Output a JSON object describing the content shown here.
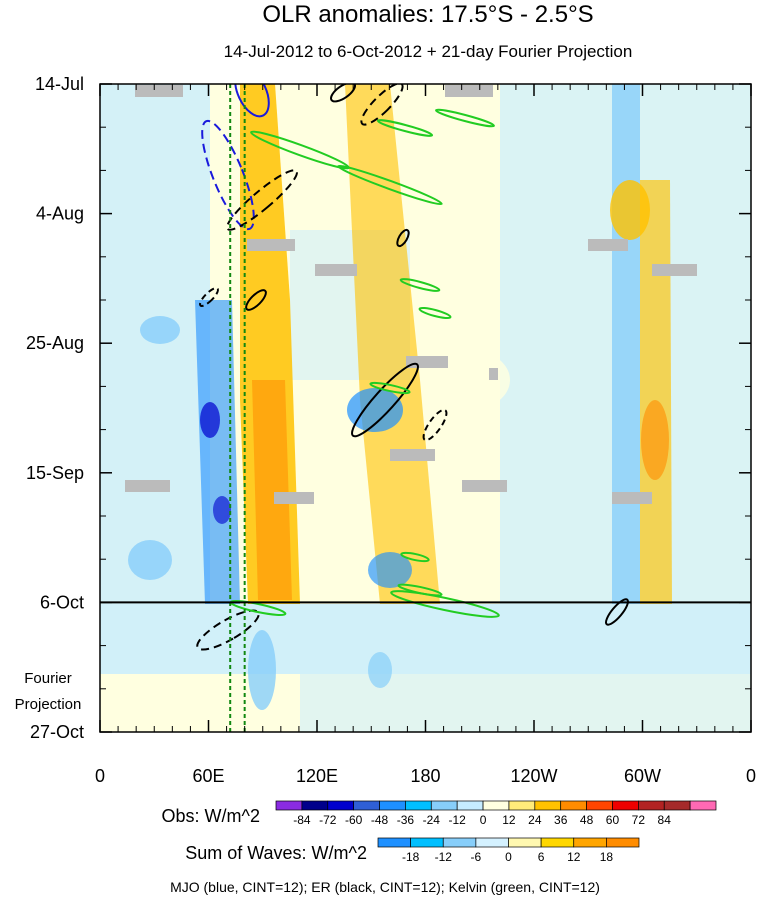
{
  "chart_data": {
    "type": "heatmap",
    "title": "OLR anomalies: 17.5°S - 2.5°S",
    "subtitle": "14-Jul-2012 to 6-Oct-2012 + 21-day Fourier Projection",
    "x_ticks": [
      "0",
      "60E",
      "120E",
      "180",
      "120W",
      "60W",
      "0"
    ],
    "x_range": [
      0,
      360
    ],
    "y_ticks": [
      {
        "label": "14-Jul",
        "day": 0
      },
      {
        "label": "4-Aug",
        "day": 21
      },
      {
        "label": "25-Aug",
        "day": 42
      },
      {
        "label": "15-Sep",
        "day": 63
      },
      {
        "label": "6-Oct",
        "day": 84
      },
      {
        "label": "27-Oct",
        "day": 105
      }
    ],
    "y_range_days": [
      0,
      105
    ],
    "forecast_start_day": 84,
    "forecast_label": [
      "Fourier",
      "Projection"
    ],
    "mjo_reference_lons": [
      72,
      80
    ],
    "obs_colorbar": {
      "label": "Obs: W/m^2",
      "levels": [
        "-84",
        "-72",
        "-60",
        "-48",
        "-36",
        "-24",
        "-12",
        "0",
        "12",
        "24",
        "36",
        "48",
        "60",
        "72",
        "84"
      ],
      "colors": [
        "#8a2be2",
        "#00008b",
        "#0000cd",
        "#2f5fd6",
        "#1e90ff",
        "#00bfff",
        "#87cefa",
        "#c6ecff",
        "#ffffe0",
        "#ffeb7a",
        "#ffc200",
        "#ff8c00",
        "#ff4500",
        "#ee0000",
        "#b22222",
        "#a52a2a",
        "#ff69b4"
      ]
    },
    "waves_colorbar": {
      "label": "Sum of Waves: W/m^2",
      "levels": [
        "-18",
        "-12",
        "-6",
        "0",
        "6",
        "12",
        "18"
      ],
      "colors": [
        "#1e90ff",
        "#00bfff",
        "#87cefa",
        "#d4f1ff",
        "#fff8b0",
        "#ffd700",
        "#ffa500",
        "#ff8c00"
      ]
    },
    "wave_contours": [
      {
        "name": "MJO",
        "color": "#1a1adc"
      },
      {
        "name": "ER",
        "color": "#000000"
      },
      {
        "name": "Kelvin",
        "color": "#22cc22"
      }
    ],
    "footer": "MJO (blue, CINT=12); ER (black, CINT=12); Kelvin (green, CINT=12)"
  }
}
